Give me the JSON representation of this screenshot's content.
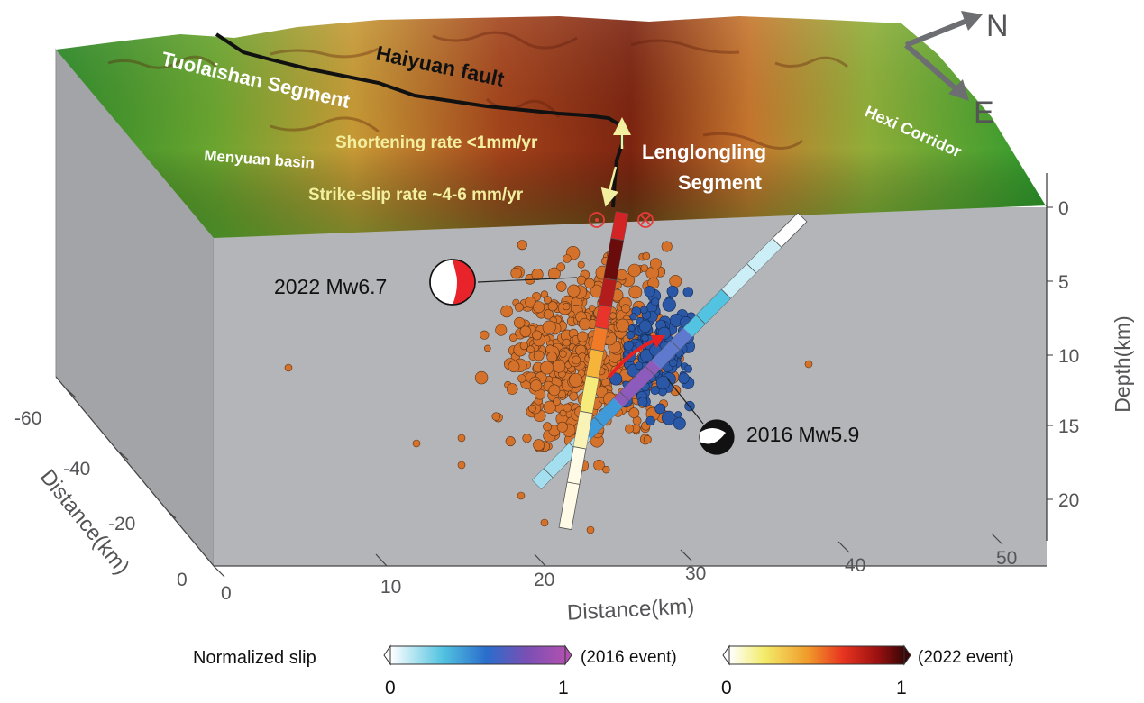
{
  "terrain_labels": {
    "fault": "Haiyuan fault",
    "seg1": "Tuolaishan Segment",
    "basin": "Menyuan basin",
    "shortening": "Shortening rate <1mm/yr",
    "strikeslip": "Strike-slip rate ~4-6 mm/yr",
    "seg2_l1": "Lenglongling",
    "seg2_l2": "Segment",
    "corridor": "Hexi Corridor"
  },
  "compass": {
    "north": "N",
    "east": "E"
  },
  "events": {
    "e2022": "2022 Mw6.7",
    "e2016": "2016 Mw5.9"
  },
  "axes": {
    "depth_label": "Depth(km)",
    "depth_ticks": [
      "0",
      "5",
      "10",
      "15",
      "20"
    ],
    "x_label": "Distance(km)",
    "x_ticks": [
      "0",
      "10",
      "20",
      "30",
      "40",
      "50"
    ],
    "y_label": "Distance(km)",
    "y_ticks": [
      "-60",
      "-40",
      "-20",
      "0"
    ]
  },
  "colorbars": {
    "title": "Normalized slip",
    "cb1": {
      "min": "0",
      "max": "1",
      "note": "(2016 event)",
      "colors": [
        "#ffffff",
        "#52c3e0",
        "#2a6dcc",
        "#7a4fb4",
        "#b051b0"
      ]
    },
    "cb2": {
      "min": "0",
      "max": "1",
      "note": "(2022 event)",
      "colors": [
        "#ffffff",
        "#f3ec6a",
        "#f09a2a",
        "#e83420",
        "#9a1010",
        "#3a0606"
      ]
    }
  },
  "colors": {
    "box_front": "#b3b5b8",
    "box_side": "#a2a4a7",
    "aftershock_2022": "#d4712b",
    "aftershock_2016": "#2b58a6",
    "beachball_2022": "#e8242a",
    "fault_trace": "#111111",
    "annotation_yellow": "#f2efa0"
  }
}
